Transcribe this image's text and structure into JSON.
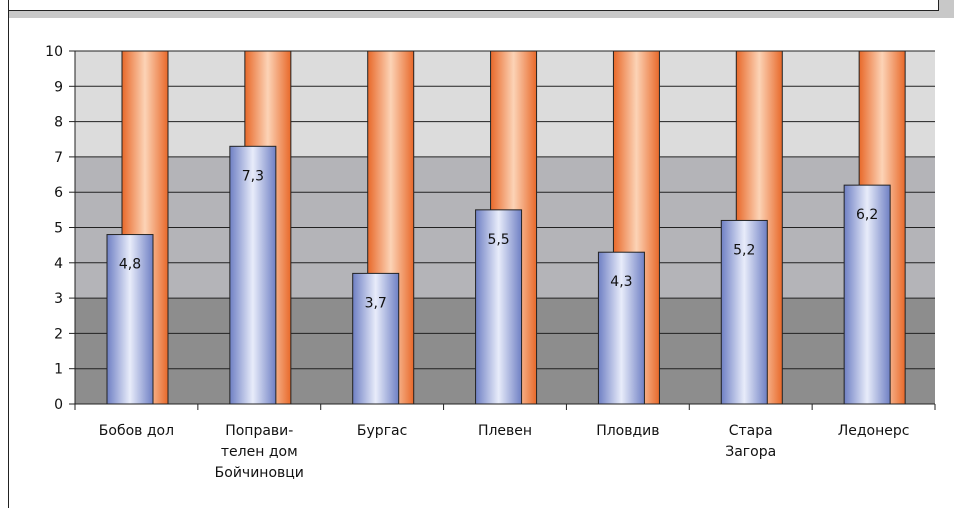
{
  "chart_data": {
    "type": "bar",
    "categories": [
      [
        "Бобов дол"
      ],
      [
        "Поправи-",
        "телен дом",
        "Бойчиновци"
      ],
      [
        "Бургас"
      ],
      [
        "Плевен"
      ],
      [
        "Пловдив"
      ],
      [
        "Стара",
        "Загора"
      ],
      [
        "Ледонерс"
      ]
    ],
    "series": [
      {
        "values": [
          4.8,
          7.3,
          3.7,
          5.5,
          4.3,
          5.2,
          6.2
        ],
        "labels": [
          "4,8",
          "7,3",
          "3,7",
          "5,5",
          "4,3",
          "5,2",
          "6,2"
        ],
        "color": "#a9b8e6"
      },
      {
        "values": [
          10,
          10,
          10,
          10,
          10,
          10,
          10
        ],
        "color": "#f08a4b"
      }
    ],
    "ylim": [
      0,
      10
    ],
    "yticks": [
      0,
      1,
      2,
      3,
      4,
      5,
      6,
      7,
      8,
      9,
      10
    ],
    "background_bands": [
      {
        "from": 0,
        "to": 3,
        "color": "#8d8d8d"
      },
      {
        "from": 3,
        "to": 7,
        "color": "#b4b4b8"
      },
      {
        "from": 7,
        "to": 10,
        "color": "#dcdcdc"
      }
    ],
    "grid": true,
    "title": "",
    "xlabel": "",
    "ylabel": ""
  }
}
